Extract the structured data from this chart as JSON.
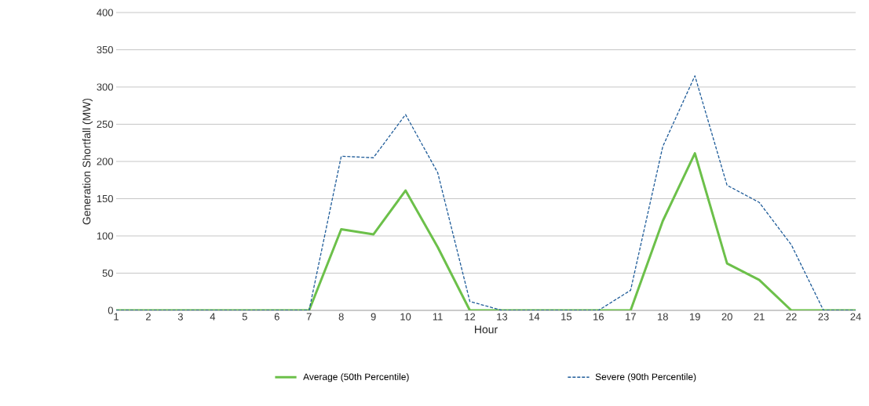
{
  "chart_data": {
    "type": "line",
    "xlabel": "Hour",
    "ylabel": "Generation Shortfall (MW)",
    "categories": [
      "1",
      "2",
      "3",
      "4",
      "5",
      "6",
      "7",
      "8",
      "9",
      "10",
      "11",
      "12",
      "13",
      "14",
      "15",
      "16",
      "17",
      "18",
      "19",
      "20",
      "21",
      "22",
      "23",
      "24"
    ],
    "series": [
      {
        "name": "Average (50th Percentile)",
        "color": "#6cc04a",
        "line_style": "solid",
        "values": [
          0,
          0,
          0,
          0,
          0,
          0,
          0,
          109,
          102,
          161,
          85,
          0,
          0,
          0,
          0,
          0,
          0,
          120,
          211,
          63,
          41,
          0,
          0,
          0
        ]
      },
      {
        "name": "Severe (90th Percentile)",
        "color": "#1f5c99",
        "line_style": "dashed",
        "values": [
          0,
          0,
          0,
          0,
          0,
          0,
          0,
          207,
          205,
          263,
          185,
          12,
          0,
          0,
          0,
          0,
          27,
          220,
          315,
          168,
          145,
          88,
          0,
          0
        ]
      }
    ],
    "ylim": [
      0,
      400
    ],
    "yticks": [
      0,
      50,
      100,
      150,
      200,
      250,
      300,
      350,
      400
    ],
    "grid": "y",
    "legend": "bottom",
    "marker": "none"
  }
}
